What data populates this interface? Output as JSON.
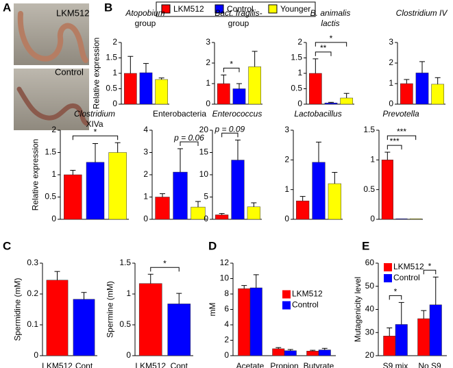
{
  "panel_labels": [
    "A",
    "B",
    "C",
    "D",
    "E"
  ],
  "photo_labels": [
    "LKM512",
    "Control"
  ],
  "legend": {
    "names": [
      "LKM512",
      "Control",
      "Younger"
    ],
    "colors": [
      "#ff0000",
      "#0000ff",
      "#ffff00"
    ]
  },
  "chart_data": [
    {
      "type": "bar",
      "title": [
        "Atopobium",
        "group"
      ],
      "italic_lines": [
        0
      ],
      "ylabel": "Relative expression",
      "values": [
        1,
        1.02,
        0.8
      ],
      "errors": [
        0.55,
        0.3,
        0.05
      ],
      "ylim": [
        0,
        2
      ],
      "yticks": [
        0,
        0.5,
        1,
        1.5,
        2
      ]
    },
    {
      "type": "bar",
      "title": [
        "Bact. fragilis-",
        "group"
      ],
      "italic_lines": [
        0
      ],
      "values": [
        1,
        0.75,
        1.82
      ],
      "errors": [
        0.42,
        0.25,
        0.75
      ],
      "ylim": [
        0,
        3
      ],
      "yticks": [
        0,
        1,
        2,
        3
      ],
      "annotations": [
        {
          "text": "*",
          "from": 0,
          "to": 1
        }
      ]
    },
    {
      "type": "bar",
      "title": [
        "B. animalis",
        "lactis"
      ],
      "italic_lines": [
        0,
        1
      ],
      "values": [
        1,
        0.04,
        0.2
      ],
      "errors": [
        0.47,
        0.02,
        0.15
      ],
      "ylim": [
        0,
        2
      ],
      "yticks": [
        0,
        0.5,
        1,
        1.5,
        2
      ],
      "annotations": [
        {
          "text": "**",
          "from": 0,
          "to": 1
        },
        {
          "text": "*",
          "from": 0,
          "to": 2
        }
      ]
    },
    {
      "type": "bar",
      "title": [
        "Clostridium IV"
      ],
      "italic_lines": [
        0
      ],
      "values": [
        1,
        1.52,
        0.97
      ],
      "errors": [
        0.2,
        0.55,
        0.32
      ],
      "ylim": [
        0,
        3
      ],
      "yticks": [
        0,
        1,
        2,
        3
      ]
    },
    {
      "type": "bar",
      "title": [
        "Clostridium",
        "XIVa"
      ],
      "italic_lines": [
        0
      ],
      "ylabel": "Relative expression",
      "values": [
        1,
        1.28,
        1.5
      ],
      "errors": [
        0.1,
        0.42,
        0.22
      ],
      "ylim": [
        0,
        2
      ],
      "yticks": [
        0,
        0.5,
        1,
        1.5,
        2
      ],
      "annotations": [
        {
          "text": "*",
          "from": 0,
          "to": 2
        }
      ]
    },
    {
      "type": "bar",
      "title": [
        "Enterobacteria"
      ],
      "values": [
        1,
        2.12,
        0.55
      ],
      "errors": [
        0.15,
        1.05,
        0.25
      ],
      "ylim": [
        0,
        4
      ],
      "yticks": [
        0,
        1,
        2,
        3,
        4
      ],
      "annotations": [
        {
          "text": "p = 0.06",
          "from": 1,
          "to": 2
        }
      ]
    },
    {
      "type": "bar",
      "title": [
        "Enterococcus"
      ],
      "italic_lines": [
        0
      ],
      "values": [
        1,
        13.3,
        2.8
      ],
      "errors": [
        0.3,
        4.5,
        0.9
      ],
      "ylim": [
        0,
        20
      ],
      "yticks": [
        0,
        5,
        10,
        15,
        20
      ],
      "annotations": [
        {
          "text": "p = 0.09",
          "from": 0,
          "to": 1
        }
      ]
    },
    {
      "type": "bar",
      "title": [
        "Lactobacillus"
      ],
      "italic_lines": [
        0
      ],
      "values": [
        0.62,
        1.92,
        1.2
      ],
      "errors": [
        0.15,
        0.68,
        0.38
      ],
      "ylim": [
        0,
        3
      ],
      "yticks": [
        0,
        1,
        2,
        3
      ]
    },
    {
      "type": "bar",
      "title": [
        "Prevotella"
      ],
      "italic_lines": [
        0
      ],
      "values": [
        1,
        0.01,
        0.01
      ],
      "errors": [
        0.13,
        0,
        0
      ],
      "ylim": [
        0,
        1.5
      ],
      "yticks": [
        0,
        0.5,
        1,
        1.5
      ],
      "annotations": [
        {
          "text": "***",
          "from": 0,
          "to": 1
        },
        {
          "text": "***",
          "from": 0,
          "to": 2
        }
      ]
    },
    {
      "type": "bar",
      "ylabel": "Spermidine (mM)",
      "categories": [
        "LKM512",
        "Cont"
      ],
      "colors": [
        "#ff0000",
        "#0000ff"
      ],
      "values": [
        0.245,
        0.183
      ],
      "errors": [
        0.028,
        0.022
      ],
      "ylim": [
        0,
        0.3
      ],
      "yticks": [
        0,
        0.1,
        0.2,
        0.3
      ]
    },
    {
      "type": "bar",
      "ylabel": "Spermine (mM)",
      "categories": [
        "LKM512",
        "Cont"
      ],
      "colors": [
        "#ff0000",
        "#0000ff"
      ],
      "values": [
        1.17,
        0.84
      ],
      "errors": [
        0.15,
        0.17
      ],
      "ylim": [
        0,
        1.5
      ],
      "yticks": [
        0,
        0.5,
        1,
        1.5
      ],
      "annotations": [
        {
          "text": "*",
          "from": 0,
          "to": 1
        }
      ]
    },
    {
      "type": "grouped_bar",
      "ylabel": "mM",
      "categories": [
        "Acetate",
        "Propion",
        "Butyrate"
      ],
      "legend_position": "right",
      "series": [
        {
          "name": "LKM512",
          "color": "#ff0000",
          "values": [
            8.7,
            0.9,
            0.6
          ],
          "errors": [
            0.4,
            0.15,
            0.1
          ]
        },
        {
          "name": "Control",
          "color": "#0000ff",
          "values": [
            8.8,
            0.65,
            0.75
          ],
          "errors": [
            1.7,
            0.15,
            0.2
          ]
        }
      ],
      "ylim": [
        0,
        12
      ],
      "yticks": [
        0,
        2,
        4,
        6,
        8,
        10,
        12
      ]
    },
    {
      "type": "grouped_bar",
      "ylabel": "Mutagenicity level",
      "categories": [
        "S9 mix",
        "No S9"
      ],
      "legend_position": "upper left",
      "series": [
        {
          "name": "LKM512",
          "color": "#ff0000",
          "values": [
            28.5,
            36
          ],
          "errors": [
            3.5,
            3.5
          ]
        },
        {
          "name": "Control",
          "color": "#0000ff",
          "values": [
            33.5,
            42
          ],
          "errors": [
            9.5,
            12
          ]
        }
      ],
      "ylim": [
        20,
        60
      ],
      "yticks": [
        20,
        30,
        40,
        50,
        60
      ],
      "annotations": [
        {
          "text": "*",
          "category": 0
        },
        {
          "text": "*",
          "category": 1
        }
      ]
    }
  ]
}
